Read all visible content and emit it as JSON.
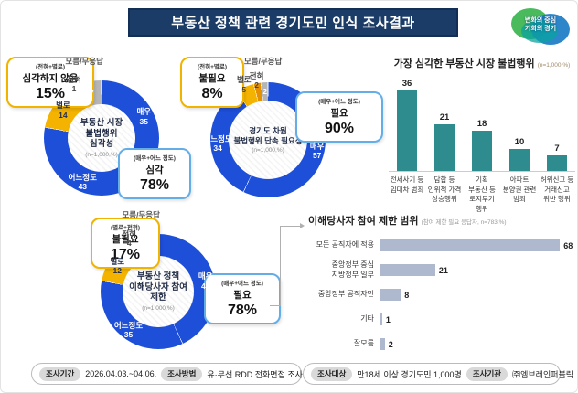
{
  "header": {
    "title": "부동산 정책 관련 경기도민 인식 조사결과"
  },
  "logo": {
    "line1": "변화의 중심",
    "line2": "기회의 경기"
  },
  "colors": {
    "navy": "#1c3c68",
    "donut_blue": "#1e4fd8",
    "donut_yellow": "#f3b300",
    "donut_orange": "#e59000",
    "donut_gray": "#b5b5b5",
    "vbar_teal": "#2e8c8e",
    "hbar_blue_gray": "#aeb9cf",
    "callout_yellow_border": "#f0b400",
    "callout_blue_border": "#64aee8"
  },
  "chart_data": [
    {
      "type": "pie",
      "style": "donut",
      "center_title": "부동산 시장\n불법행위\n심각성",
      "n_label": "(n=1,000,%)",
      "segments": [
        {
          "label": "매우",
          "value": 35,
          "color": "#1e4fd8",
          "text": "#ffffff",
          "pos": "in"
        },
        {
          "label": "어느정도",
          "value": 43,
          "color": "#1e4fd8",
          "text": "#ffffff",
          "pos": "in"
        },
        {
          "label": "별로",
          "value": 14,
          "color": "#f3b300",
          "text": "#23304d",
          "pos": "in"
        },
        {
          "label": "전혀",
          "value": 1,
          "color": "#e59000",
          "text": "#444444",
          "pos": "out"
        },
        {
          "label": "모름/무응답",
          "value": 7,
          "color": "#b5b5b5",
          "text": "#ffffff",
          "pos": "split"
        }
      ],
      "callout_left": {
        "sub": "(전혀+별로)",
        "label": "심각하지 않음",
        "pct": "15%"
      },
      "callout_right": {
        "sub": "(매우+어느 정도)",
        "label": "심각",
        "pct": "78%"
      }
    },
    {
      "type": "pie",
      "style": "donut",
      "center_title": "경기도 차원\n불법행위 단속 필요성",
      "n_label": "(n=1,000,%)",
      "segments": [
        {
          "label": "매우",
          "value": 57,
          "color": "#1e4fd8",
          "text": "#ffffff",
          "pos": "in"
        },
        {
          "label": "어느정도",
          "value": 34,
          "color": "#1e4fd8",
          "text": "#ffffff",
          "pos": "in"
        },
        {
          "label": "별로",
          "value": 5,
          "color": "#f3b300",
          "text": "#23304d",
          "pos": "out"
        },
        {
          "label": "전혀",
          "value": 2,
          "color": "#e59000",
          "text": "#444444",
          "pos": "out"
        },
        {
          "label": "모름/무응답",
          "value": 2,
          "color": "#b5b5b5",
          "text": "#ffffff",
          "pos": "split"
        }
      ],
      "callout_left": {
        "sub": "(전혀+별로)",
        "label": "불필요",
        "pct": "8%"
      },
      "callout_right": {
        "sub": "(매우+어느 정도)",
        "label": "필요",
        "pct": "90%"
      }
    },
    {
      "type": "bar",
      "orientation": "vertical",
      "title": "가장 심각한 부동산 시장 불법행위",
      "n_label": "(n=1,000,%)",
      "categories": [
        "전세사기 등\n임대차 범죄",
        "담합 등\n인위적 가격\n상승행위",
        "기획\n부동산 등\n토지투기\n행위",
        "아파트\n분양권 관련\n범죄",
        "허위신고 등\n거래신고\n위반 행위"
      ],
      "values": [
        36,
        21,
        18,
        10,
        7
      ],
      "ylim": [
        0,
        40
      ],
      "grid": false,
      "bar_color": "#2e8c8e"
    },
    {
      "type": "pie",
      "style": "donut",
      "center_title": "부동산 정책\n이해당사자 참여\n제한",
      "n_label": "(n=1,000,%)",
      "segments": [
        {
          "label": "매우",
          "value": 43,
          "color": "#1e4fd8",
          "text": "#ffffff",
          "pos": "in"
        },
        {
          "label": "어느정도",
          "value": 35,
          "color": "#1e4fd8",
          "text": "#ffffff",
          "pos": "in"
        },
        {
          "label": "별로",
          "value": 12,
          "color": "#f3b300",
          "text": "#23304d",
          "pos": "in"
        },
        {
          "label": "전혀",
          "value": 4,
          "color": "#e59000",
          "text": "#444444",
          "pos": "out"
        },
        {
          "label": "모름/무응답",
          "value": 5,
          "color": "#b5b5b5",
          "text": "#ffffff",
          "pos": "split"
        }
      ],
      "callout_left": {
        "sub": "(별로+전혀)",
        "label": "불필요",
        "pct": "17%"
      },
      "callout_right": {
        "sub": "(매우+어느 정도)",
        "label": "필요",
        "pct": "78%"
      }
    },
    {
      "type": "bar",
      "orientation": "horizontal",
      "title": "이해당사자 참여 제한 범위",
      "n_label": "(참여 제한 필요 응답자, n=783,%)",
      "categories": [
        "모든 공직자에 적용",
        "중앙정부 중심\n지방정부 일부",
        "중앙정부 공직자만",
        "기타",
        "잘모름"
      ],
      "values": [
        68,
        21,
        8,
        1,
        2
      ],
      "xlim": [
        0,
        75
      ],
      "grid": false,
      "bar_color": "#aeb9cf"
    }
  ],
  "footer": {
    "items": [
      {
        "badge": "조사기간",
        "value": "2026.04.03.~04.06."
      },
      {
        "badge": "조사방법",
        "value": "유·무선 RDD 전화면접 조사"
      },
      {
        "badge": "조사대상",
        "value": "만18세 이상 경기도민 1,000명"
      },
      {
        "badge": "조사기관",
        "value": "㈜엠브레인퍼블릭"
      }
    ]
  }
}
